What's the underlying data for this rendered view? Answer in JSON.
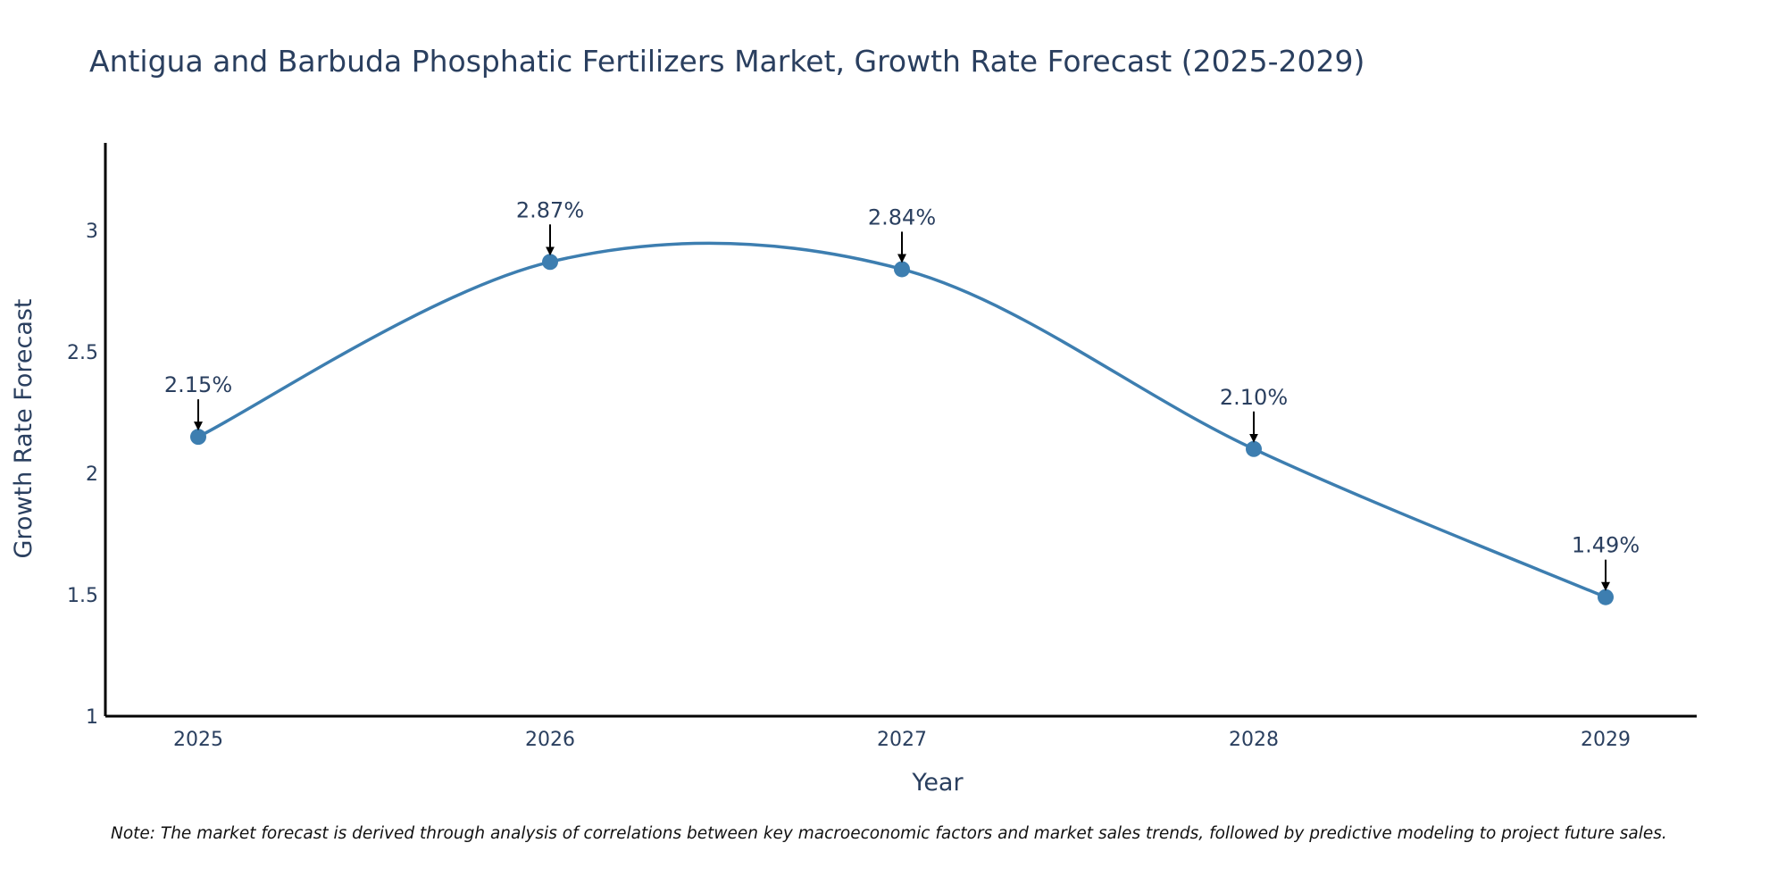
{
  "chart_data": {
    "type": "line",
    "title": "Antigua and Barbuda Phosphatic Fertilizers Market, Growth Rate Forecast (2025-2029)",
    "xlabel": "Year",
    "ylabel": "Growth Rate Forecast",
    "categories": [
      "2025",
      "2026",
      "2027",
      "2028",
      "2029"
    ],
    "values": [
      2.15,
      2.87,
      2.84,
      2.1,
      1.49
    ],
    "annotations": [
      "2.15%",
      "2.87%",
      "2.84%",
      "2.10%",
      "1.49%"
    ],
    "yticks": [
      "1",
      "1.5",
      "2",
      "2.5",
      "3"
    ],
    "ylim": [
      1,
      3.36
    ],
    "grid": false,
    "line_shape": "spline",
    "colors": {
      "line": "#3d7eb0",
      "marker": "#3d7eb0",
      "arrow": "#000000",
      "axis": "#000000"
    }
  },
  "note": "Note: The market forecast is derived through analysis of correlations between key macroeconomic factors and market sales trends, followed by predictive modeling to project future sales."
}
